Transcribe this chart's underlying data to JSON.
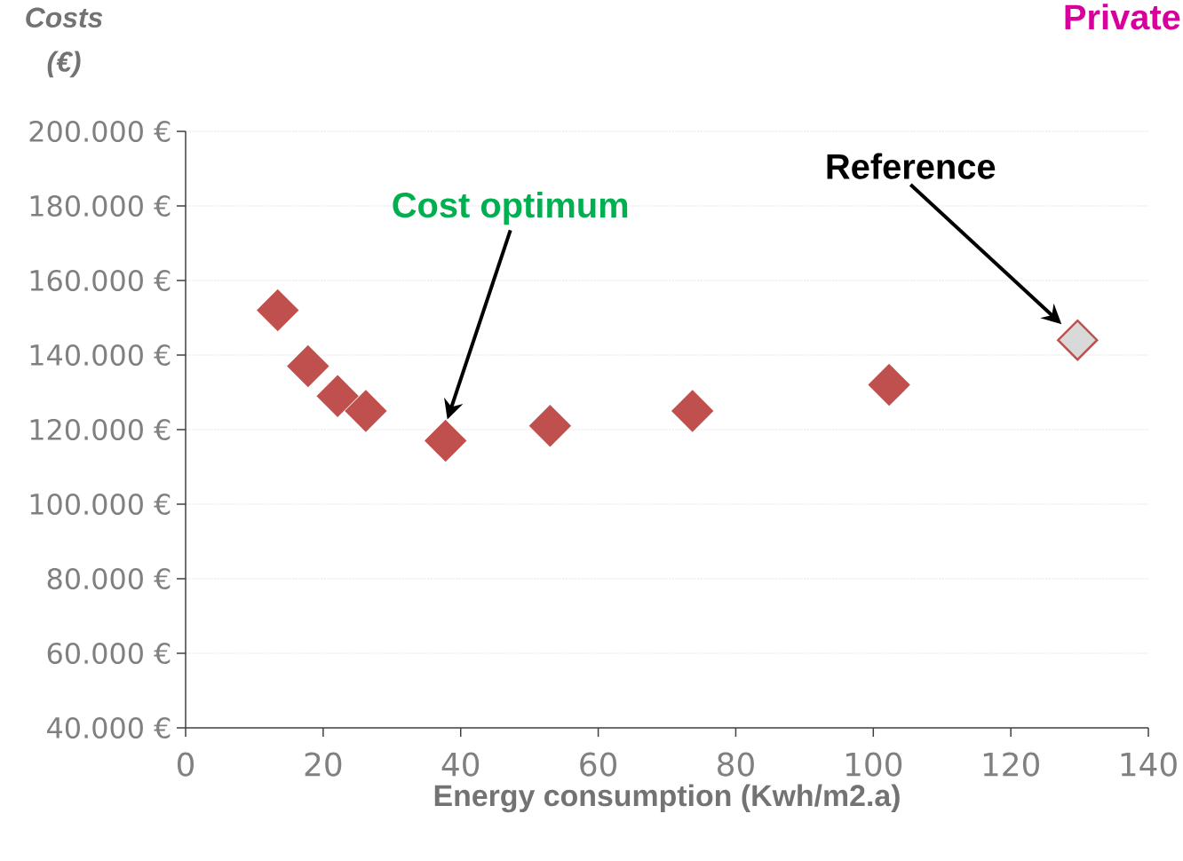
{
  "chart_data": {
    "type": "scatter",
    "title": "Private",
    "ylabel": "Costs (€)",
    "xlabel": "Energy consumption (Kwh/m2.a)",
    "series": [
      {
        "color": "#c0504d",
        "x": [
          13.4,
          17.8,
          22.1,
          26.2,
          37.8,
          53,
          73.7,
          102.3
        ],
        "values": [
          152000,
          137000,
          129000,
          125000,
          117000,
          121000,
          125000,
          132000
        ]
      },
      {
        "color": "#d9d9d9",
        "x": [
          129.7
        ],
        "values": [
          144000
        ]
      }
    ],
    "marker": "diamond",
    "grid": "y",
    "xlim": [
      0,
      140
    ],
    "xticks": [
      0,
      20,
      40,
      60,
      80,
      100,
      120,
      140
    ],
    "ylim": [
      40000,
      200000
    ],
    "yticks": [
      {
        "value": 40000,
        "label": "40.000 €"
      },
      {
        "value": 60000,
        "label": "60.000 €"
      },
      {
        "value": 80000,
        "label": "80.000 €"
      },
      {
        "value": 100000,
        "label": "100.000 €"
      },
      {
        "value": 120000,
        "label": "120.000 €"
      },
      {
        "value": 140000,
        "label": "140.000 €"
      },
      {
        "value": 160000,
        "label": "160.000 €"
      },
      {
        "value": 180000,
        "label": "180.000 €"
      },
      {
        "value": 200000,
        "label": "200.000 €"
      }
    ],
    "annotations": [
      "Cost optimum",
      "Reference"
    ]
  }
}
